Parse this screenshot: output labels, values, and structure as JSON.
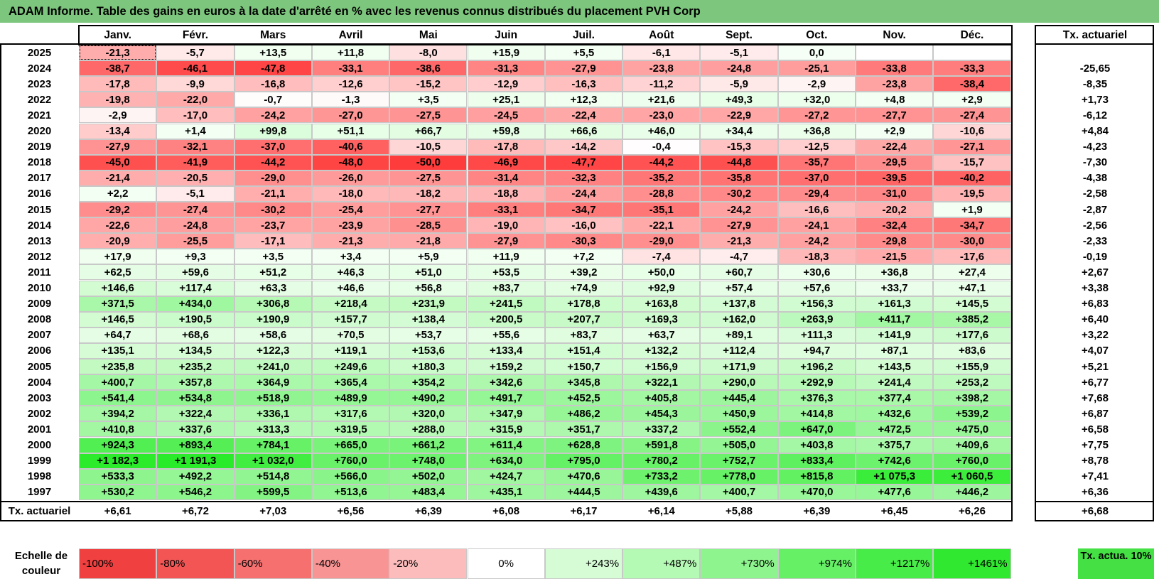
{
  "title": "ADAM Informe. Table des gains en euros à la date d'arrêté en % avec les revenus connus distribués du placement PVH Corp",
  "months": [
    "Janv.",
    "Févr.",
    "Mars",
    "Avril",
    "Mai",
    "Juin",
    "Juil.",
    "Août",
    "Sept.",
    "Oct.",
    "Nov.",
    "Déc."
  ],
  "tx_header": "Tx. actuariel",
  "tx_row_label": "Tx. actuariel",
  "legend": {
    "label": "Echelle de couleur",
    "tx_label": "Tx. actua. 10%",
    "tx_color": "#44e044",
    "scale": [
      {
        "label": "-100%",
        "color": "#f04040"
      },
      {
        "label": "-80%",
        "color": "#f35555"
      },
      {
        "label": "-60%",
        "color": "#f67070"
      },
      {
        "label": "-40%",
        "color": "#f99494"
      },
      {
        "label": "-20%",
        "color": "#fcbcbc"
      },
      {
        "label": "0%",
        "color": "#ffffff"
      },
      {
        "label": "+243%",
        "color": "#d6fcd6"
      },
      {
        "label": "+487%",
        "color": "#b4f9b4"
      },
      {
        "label": "+730%",
        "color": "#8ef58e"
      },
      {
        "label": "+974%",
        "color": "#66f066"
      },
      {
        "label": "+1217%",
        "color": "#48ec48"
      },
      {
        "label": "+1461%",
        "color": "#30e830"
      }
    ]
  },
  "chart_data": {
    "type": "heatmap",
    "title": "ADAM Informe. Table des gains en euros à la date d'arrêté en % avec les revenus connus distribués du placement PVH Corp",
    "x": [
      "Janv.",
      "Févr.",
      "Mars",
      "Avril",
      "Mai",
      "Juin",
      "Juil.",
      "Août",
      "Sept.",
      "Oct.",
      "Nov.",
      "Déc."
    ],
    "y": [
      "2025",
      "2024",
      "2023",
      "2022",
      "2021",
      "2020",
      "2019",
      "2018",
      "2017",
      "2016",
      "2015",
      "2014",
      "2013",
      "2012",
      "2011",
      "2010",
      "2009",
      "2008",
      "2007",
      "2006",
      "2005",
      "2004",
      "2003",
      "2002",
      "2001",
      "2000",
      "1999",
      "1998",
      "1997"
    ],
    "values": [
      [
        "-21,3",
        "-5,7",
        "+13,5",
        "+11,8",
        "-8,0",
        "+15,9",
        "+5,5",
        "-6,1",
        "-5,1",
        "0,0",
        "",
        ""
      ],
      [
        "-38,7",
        "-46,1",
        "-47,8",
        "-33,1",
        "-38,6",
        "-31,3",
        "-27,9",
        "-23,8",
        "-24,8",
        "-25,1",
        "-33,8",
        "-33,3"
      ],
      [
        "-17,8",
        "-9,9",
        "-16,8",
        "-12,6",
        "-15,2",
        "-12,9",
        "-16,3",
        "-11,2",
        "-5,9",
        "-2,9",
        "-23,8",
        "-38,4"
      ],
      [
        "-19,8",
        "-22,0",
        "-0,7",
        "-1,3",
        "+3,5",
        "+25,1",
        "+12,3",
        "+21,6",
        "+49,3",
        "+32,0",
        "+4,8",
        "+2,9"
      ],
      [
        "-2,9",
        "-17,0",
        "-24,2",
        "-27,0",
        "-27,5",
        "-24,5",
        "-22,4",
        "-23,0",
        "-22,9",
        "-27,2",
        "-27,7",
        "-27,4"
      ],
      [
        "-13,4",
        "+1,4",
        "+99,8",
        "+51,1",
        "+66,7",
        "+59,8",
        "+66,6",
        "+46,0",
        "+34,4",
        "+36,8",
        "+2,9",
        "-10,6"
      ],
      [
        "-27,9",
        "-32,1",
        "-37,0",
        "-40,6",
        "-10,5",
        "-17,8",
        "-14,2",
        "-0,4",
        "-15,3",
        "-12,5",
        "-22,4",
        "-27,1"
      ],
      [
        "-45,0",
        "-41,9",
        "-44,2",
        "-48,0",
        "-50,0",
        "-46,9",
        "-47,7",
        "-44,2",
        "-44,8",
        "-35,7",
        "-29,5",
        "-15,7"
      ],
      [
        "-21,4",
        "-20,5",
        "-29,0",
        "-26,0",
        "-27,5",
        "-31,4",
        "-32,3",
        "-35,2",
        "-35,8",
        "-37,0",
        "-39,5",
        "-40,2"
      ],
      [
        "+2,2",
        "-5,1",
        "-21,1",
        "-18,0",
        "-18,2",
        "-18,8",
        "-24,4",
        "-28,8",
        "-30,2",
        "-29,4",
        "-31,0",
        "-19,5"
      ],
      [
        "-29,2",
        "-27,4",
        "-30,2",
        "-25,4",
        "-27,7",
        "-33,1",
        "-34,7",
        "-35,1",
        "-24,2",
        "-16,6",
        "-20,2",
        "+1,9"
      ],
      [
        "-22,6",
        "-24,8",
        "-23,7",
        "-23,9",
        "-28,5",
        "-19,0",
        "-16,0",
        "-22,1",
        "-27,9",
        "-24,1",
        "-32,4",
        "-34,7"
      ],
      [
        "-20,9",
        "-25,5",
        "-17,1",
        "-21,3",
        "-21,8",
        "-27,9",
        "-30,3",
        "-29,0",
        "-21,3",
        "-24,2",
        "-29,8",
        "-30,0"
      ],
      [
        "+17,9",
        "+9,3",
        "+3,5",
        "+3,4",
        "+5,9",
        "+11,9",
        "+7,2",
        "-7,4",
        "-4,7",
        "-18,3",
        "-21,5",
        "-17,6"
      ],
      [
        "+62,5",
        "+59,6",
        "+51,2",
        "+46,3",
        "+51,0",
        "+53,5",
        "+39,2",
        "+50,0",
        "+60,7",
        "+30,6",
        "+36,8",
        "+27,4"
      ],
      [
        "+146,6",
        "+117,4",
        "+63,3",
        "+46,6",
        "+56,8",
        "+83,7",
        "+74,9",
        "+92,9",
        "+57,4",
        "+57,6",
        "+33,7",
        "+47,1"
      ],
      [
        "+371,5",
        "+434,0",
        "+306,8",
        "+218,4",
        "+231,9",
        "+241,5",
        "+178,8",
        "+163,8",
        "+137,8",
        "+156,3",
        "+161,3",
        "+145,5"
      ],
      [
        "+146,5",
        "+190,5",
        "+190,9",
        "+157,7",
        "+138,4",
        "+200,5",
        "+207,7",
        "+169,3",
        "+162,0",
        "+263,9",
        "+411,7",
        "+385,2"
      ],
      [
        "+64,7",
        "+68,6",
        "+58,6",
        "+70,5",
        "+53,7",
        "+55,6",
        "+83,7",
        "+63,7",
        "+89,1",
        "+111,3",
        "+141,9",
        "+177,6"
      ],
      [
        "+135,1",
        "+134,5",
        "+122,3",
        "+119,1",
        "+153,6",
        "+133,4",
        "+151,4",
        "+132,2",
        "+112,4",
        "+94,7",
        "+87,1",
        "+83,6"
      ],
      [
        "+235,8",
        "+235,2",
        "+241,0",
        "+249,6",
        "+180,3",
        "+159,2",
        "+150,7",
        "+156,9",
        "+171,9",
        "+196,2",
        "+143,5",
        "+155,9"
      ],
      [
        "+400,7",
        "+357,8",
        "+364,9",
        "+365,4",
        "+354,2",
        "+342,6",
        "+345,8",
        "+322,1",
        "+290,0",
        "+292,9",
        "+241,4",
        "+253,2"
      ],
      [
        "+541,4",
        "+534,8",
        "+518,9",
        "+489,9",
        "+490,2",
        "+491,7",
        "+452,5",
        "+405,8",
        "+445,4",
        "+376,3",
        "+377,4",
        "+398,2"
      ],
      [
        "+394,2",
        "+322,4",
        "+336,1",
        "+317,6",
        "+320,0",
        "+347,9",
        "+486,2",
        "+454,3",
        "+450,9",
        "+414,8",
        "+432,6",
        "+539,2"
      ],
      [
        "+410,8",
        "+337,6",
        "+313,3",
        "+319,5",
        "+288,0",
        "+315,9",
        "+351,7",
        "+337,2",
        "+552,4",
        "+647,0",
        "+472,5",
        "+475,0"
      ],
      [
        "+924,3",
        "+893,4",
        "+784,1",
        "+665,0",
        "+661,2",
        "+611,4",
        "+628,8",
        "+591,8",
        "+505,0",
        "+403,8",
        "+375,7",
        "+409,6"
      ],
      [
        "+1 182,3",
        "+1 191,3",
        "+1 032,0",
        "+760,0",
        "+748,0",
        "+634,0",
        "+795,0",
        "+780,2",
        "+752,7",
        "+833,4",
        "+742,6",
        "+760,0"
      ],
      [
        "+533,3",
        "+492,2",
        "+514,8",
        "+566,0",
        "+502,0",
        "+424,7",
        "+470,6",
        "+733,2",
        "+778,0",
        "+815,8",
        "+1 075,3",
        "+1 060,5"
      ],
      [
        "+530,2",
        "+546,2",
        "+599,5",
        "+513,6",
        "+483,4",
        "+435,1",
        "+444,5",
        "+439,6",
        "+400,7",
        "+470,0",
        "+477,6",
        "+446,2"
      ]
    ],
    "row_tx": [
      "",
      "-25,65",
      "-8,35",
      "+1,73",
      "-6,12",
      "+4,84",
      "-4,23",
      "-7,30",
      "-4,38",
      "-2,58",
      "-2,87",
      "-2,56",
      "-2,33",
      "-0,19",
      "+2,67",
      "+3,38",
      "+6,83",
      "+6,40",
      "+3,22",
      "+4,07",
      "+5,21",
      "+6,77",
      "+7,68",
      "+6,87",
      "+6,58",
      "+7,75",
      "+8,78",
      "+7,41",
      "+6,36"
    ],
    "col_tx": [
      "+6,61",
      "+6,72",
      "+7,03",
      "+6,56",
      "+6,39",
      "+6,08",
      "+6,17",
      "+6,14",
      "+5,88",
      "+6,39",
      "+6,45",
      "+6,26"
    ],
    "total_tx": "+6,68"
  }
}
